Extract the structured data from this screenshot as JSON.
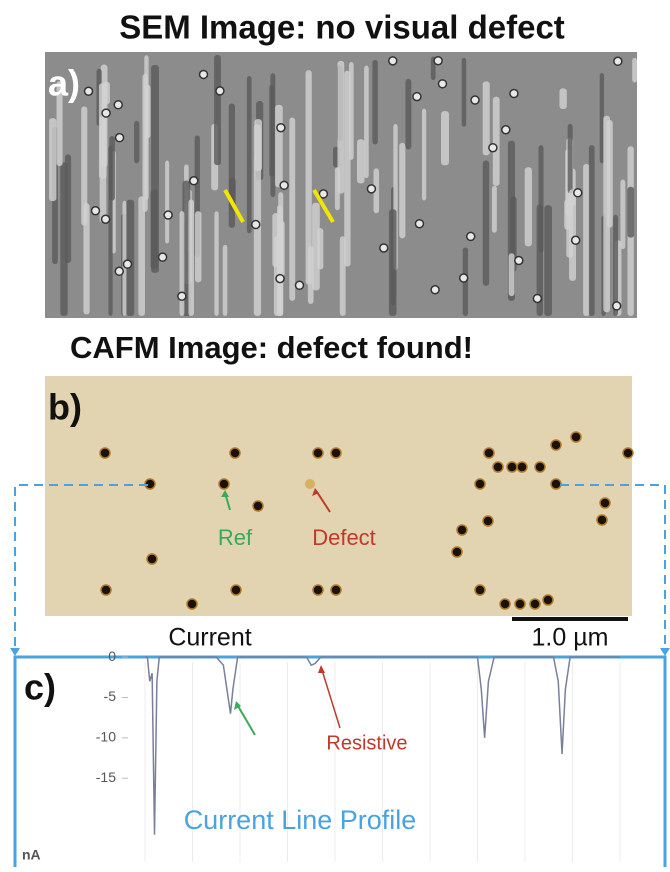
{
  "panel_a": {
    "title": "SEM Image: no visual defect",
    "label": "a)"
  },
  "panel_b": {
    "title": "CAFM Image: defect found!",
    "label": "b)",
    "ref_label": "Ref",
    "defect_label": "Defect",
    "current_label": "Current",
    "scale_label": "1.0 µm"
  },
  "chart_data": {
    "type": "line",
    "label": "c)",
    "title": "Current Line Profile",
    "ylabel": "nA",
    "annotation": "Resistive",
    "x": [
      0,
      0.5,
      1,
      1.5,
      2,
      2.5,
      3,
      15,
      16.5,
      17.5,
      18,
      18.5,
      19.5,
      34,
      35,
      35.8,
      37,
      70,
      70.8,
      71.5,
      72.3,
      73.5,
      86,
      87,
      87.8,
      88.5,
      89.5,
      100
    ],
    "series": [
      {
        "name": "Current",
        "color": "#7a7f9a",
        "values": [
          0,
          0,
          -3,
          -2,
          -22,
          -3,
          0,
          0,
          -1,
          -5,
          -7,
          -4,
          0,
          0,
          -1,
          -0.8,
          0,
          0,
          -4,
          -10,
          -3,
          0,
          0,
          -3,
          -12,
          -4,
          0,
          0
        ]
      }
    ],
    "xlim": [
      0,
      100
    ],
    "ylim": [
      -25,
      1
    ],
    "yticks": [
      0,
      -5,
      -10,
      -15
    ]
  }
}
